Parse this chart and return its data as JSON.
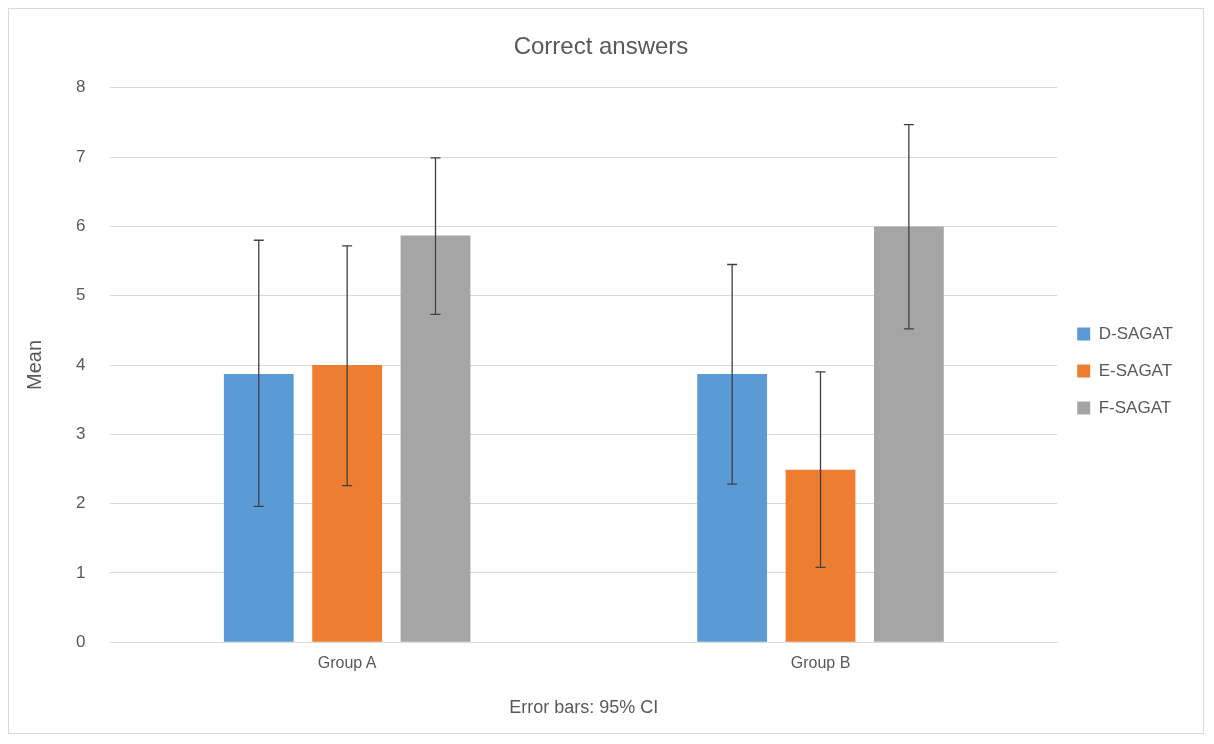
{
  "chart_data": {
    "type": "bar",
    "title": "Correct answers",
    "xlabel": "Error bars: 95% CI",
    "ylabel": "Mean",
    "categories": [
      "Group A",
      "Group B"
    ],
    "series": [
      {
        "name": "D-SAGAT",
        "color": "#5b9bd5",
        "values": [
          3.87,
          3.87
        ],
        "errors": [
          [
            1.96,
            5.8
          ],
          [
            2.28,
            5.45
          ]
        ]
      },
      {
        "name": "E-SAGAT",
        "color": "#ed7d31",
        "values": [
          4.0,
          2.49
        ],
        "errors": [
          [
            2.26,
            5.72
          ],
          [
            1.08,
            3.9
          ]
        ]
      },
      {
        "name": "F-SAGAT",
        "color": "#a5a5a5",
        "values": [
          5.87,
          6.0
        ],
        "errors": [
          [
            4.73,
            6.99
          ],
          [
            4.52,
            7.47
          ]
        ]
      }
    ],
    "ylim": [
      0,
      8
    ],
    "yticks": [
      0,
      1,
      2,
      3,
      4,
      5,
      6,
      7,
      8
    ],
    "grid": "y",
    "legend": "right"
  }
}
